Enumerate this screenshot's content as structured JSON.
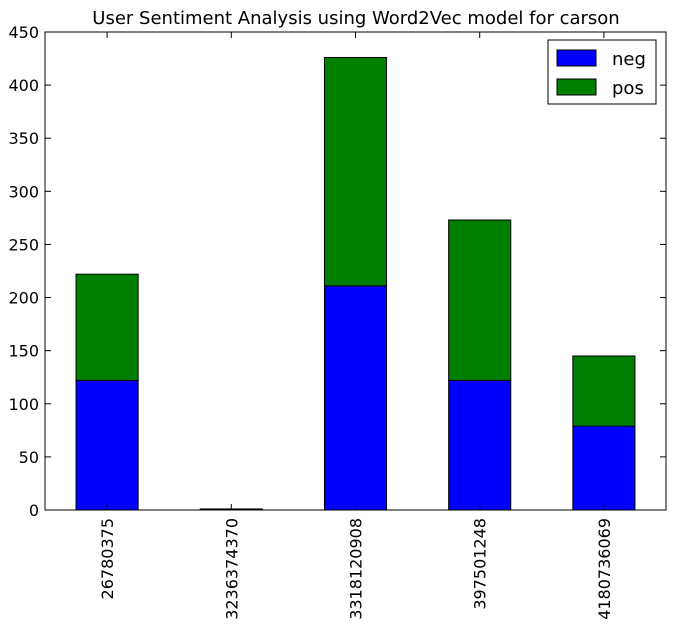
{
  "chart_data": {
    "type": "bar",
    "stacked": true,
    "title": "User Sentiment Analysis using Word2Vec model for carson",
    "xlabel": "",
    "ylabel": "",
    "categories": [
      "26780375",
      "3236374370",
      "3318120908",
      "397501248",
      "4180736069"
    ],
    "series": [
      {
        "name": "neg",
        "color": "#0000ff",
        "values": [
          122,
          1,
          211,
          122,
          79
        ]
      },
      {
        "name": "pos",
        "color": "#008000",
        "values": [
          100,
          0,
          215,
          151,
          66
        ]
      }
    ],
    "ylim": [
      0,
      450
    ],
    "yticks": [
      0,
      50,
      100,
      150,
      200,
      250,
      300,
      350,
      400,
      450
    ],
    "grid": false,
    "legend": "top-right"
  }
}
